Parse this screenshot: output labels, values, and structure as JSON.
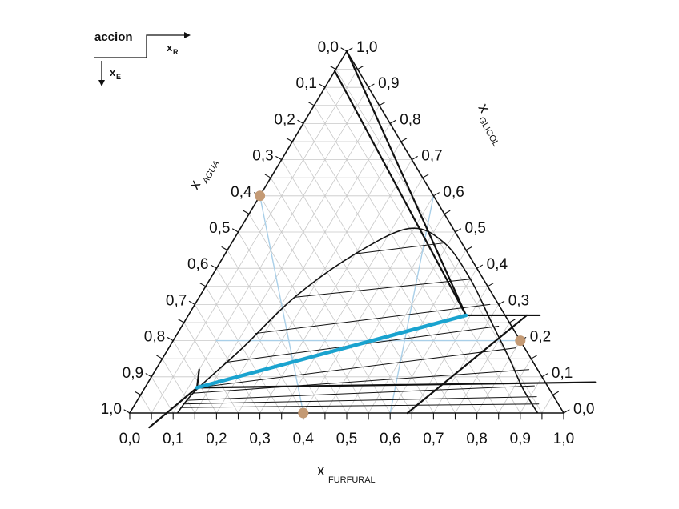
{
  "legend": {
    "title": "accion",
    "x_label": "x",
    "x_sub": "R",
    "y_label": "x",
    "y_sub": "E"
  },
  "axes": {
    "bottom": {
      "symbol": "x",
      "name": "FURFURAL"
    },
    "left": {
      "symbol": "x",
      "name": "AGUA"
    },
    "right": {
      "symbol": "x",
      "name": "GLICOL"
    }
  },
  "ticks": {
    "bottom": [
      "0,0",
      "0,1",
      "0,2",
      "0,3",
      "0,4",
      "0,5",
      "0,6",
      "0,7",
      "0,8",
      "0,9",
      "1,0"
    ],
    "left": [
      "1,0",
      "0,9",
      "0,8",
      "0,7",
      "0,6",
      "0,5",
      "0,4",
      "0,3",
      "0,2",
      "0,1",
      "0,0"
    ],
    "right": [
      "0,0",
      "0,1",
      "0,2",
      "0,3",
      "0,4",
      "0,5",
      "0,6",
      "0,7",
      "0,8",
      "0,9",
      "1,0"
    ]
  },
  "colors": {
    "grid": "#c8c8c8",
    "frame": "#111111",
    "construction": "#a9cfe8",
    "operating_line": "#1aa3cf",
    "point": "#c49a74"
  },
  "chart_data": {
    "type": "ternary",
    "components": [
      "furfural",
      "glicol",
      "agua"
    ],
    "binodal": [
      {
        "furfural": 0.11,
        "glicol": 0.0
      },
      {
        "furfural": 0.12,
        "glicol": 0.06
      },
      {
        "furfural": 0.17,
        "glicol": 0.18
      },
      {
        "furfural": 0.22,
        "glicol": 0.32
      },
      {
        "furfural": 0.3,
        "glicol": 0.44
      },
      {
        "furfural": 0.39,
        "glicol": 0.51
      },
      {
        "furfural": 0.49,
        "glicol": 0.47
      },
      {
        "furfural": 0.6,
        "glicol": 0.37
      },
      {
        "furfural": 0.7,
        "glicol": 0.26
      },
      {
        "furfural": 0.8,
        "glicol": 0.15
      },
      {
        "furfural": 0.87,
        "glicol": 0.07
      },
      {
        "furfural": 0.94,
        "glicol": 0.0
      }
    ],
    "tie_lines": [
      [
        {
          "furfural": 0.11,
          "glicol": 0.015
        },
        {
          "furfural": 0.93,
          "glicol": 0.025
        }
      ],
      [
        {
          "furfural": 0.11,
          "glicol": 0.025
        },
        {
          "furfural": 0.915,
          "glicol": 0.045
        }
      ],
      [
        {
          "furfural": 0.115,
          "glicol": 0.035
        },
        {
          "furfural": 0.895,
          "glicol": 0.075
        }
      ],
      [
        {
          "furfural": 0.12,
          "glicol": 0.055
        },
        {
          "furfural": 0.86,
          "glicol": 0.12
        }
      ],
      [
        {
          "furfural": 0.12,
          "glicol": 0.07
        },
        {
          "furfural": 0.8,
          "glicol": 0.18
        }
      ],
      [
        {
          "furfural": 0.15,
          "glicol": 0.14
        },
        {
          "furfural": 0.73,
          "glicol": 0.24
        }
      ],
      [
        {
          "furfural": 0.18,
          "glicol": 0.22
        },
        {
          "furfural": 0.68,
          "glicol": 0.3
        }
      ],
      [
        {
          "furfural": 0.22,
          "glicol": 0.32
        },
        {
          "furfural": 0.6,
          "glicol": 0.37
        }
      ],
      [
        {
          "furfural": 0.3,
          "glicol": 0.44
        },
        {
          "furfural": 0.49,
          "glicol": 0.47
        }
      ]
    ],
    "operating_line": [
      {
        "furfural": 0.12,
        "glicol": 0.07
      },
      {
        "furfural": 0.64,
        "glicol": 0.27
      }
    ],
    "construction_lines": [
      [
        {
          "furfural": 0.0,
          "glicol": 0.6
        },
        {
          "furfural": 0.4,
          "glicol": 0.0
        }
      ],
      [
        {
          "furfural": 0.4,
          "glicol": 0.6
        },
        {
          "furfural": 0.6,
          "glicol": 0.0
        }
      ],
      [
        {
          "furfural": 0.1,
          "glicol": 0.2
        },
        {
          "furfural": 0.8,
          "glicol": 0.2
        }
      ]
    ],
    "marked_points": [
      {
        "furfural": 0.0,
        "glicol": 0.6
      },
      {
        "furfural": 0.4,
        "glicol": 0.0
      },
      {
        "furfural": 0.8,
        "glicol": 0.2
      }
    ],
    "auxiliary_lines": [
      [
        {
          "furfural": 0.0,
          "glicol": 1.0
        },
        {
          "furfural": 0.64,
          "glicol": 0.27
        }
      ],
      [
        {
          "furfural": 0.0,
          "glicol": 0.945
        },
        {
          "furfural": 0.64,
          "glicol": 0.27
        }
      ],
      [
        {
          "furfural": 0.64,
          "glicol": 0.27
        },
        {
          "furfural": 0.81,
          "glicol": 0.27
        }
      ],
      [
        {
          "furfural": 0.64,
          "glicol": 0.0
        },
        {
          "furfural": 0.78,
          "glicol": 0.27
        }
      ],
      [
        {
          "furfural": 0.12,
          "glicol": 0.07
        },
        {
          "furfural": 1.03,
          "glicol": 0.085
        }
      ],
      [
        {
          "furfural": 0.12,
          "glicol": 0.07
        },
        {
          "furfural": 0.1,
          "glicol": 0.12
        }
      ],
      [
        {
          "furfural": 0.12,
          "glicol": 0.07
        },
        {
          "furfural": 0.065,
          "glicol": -0.04
        }
      ]
    ]
  }
}
